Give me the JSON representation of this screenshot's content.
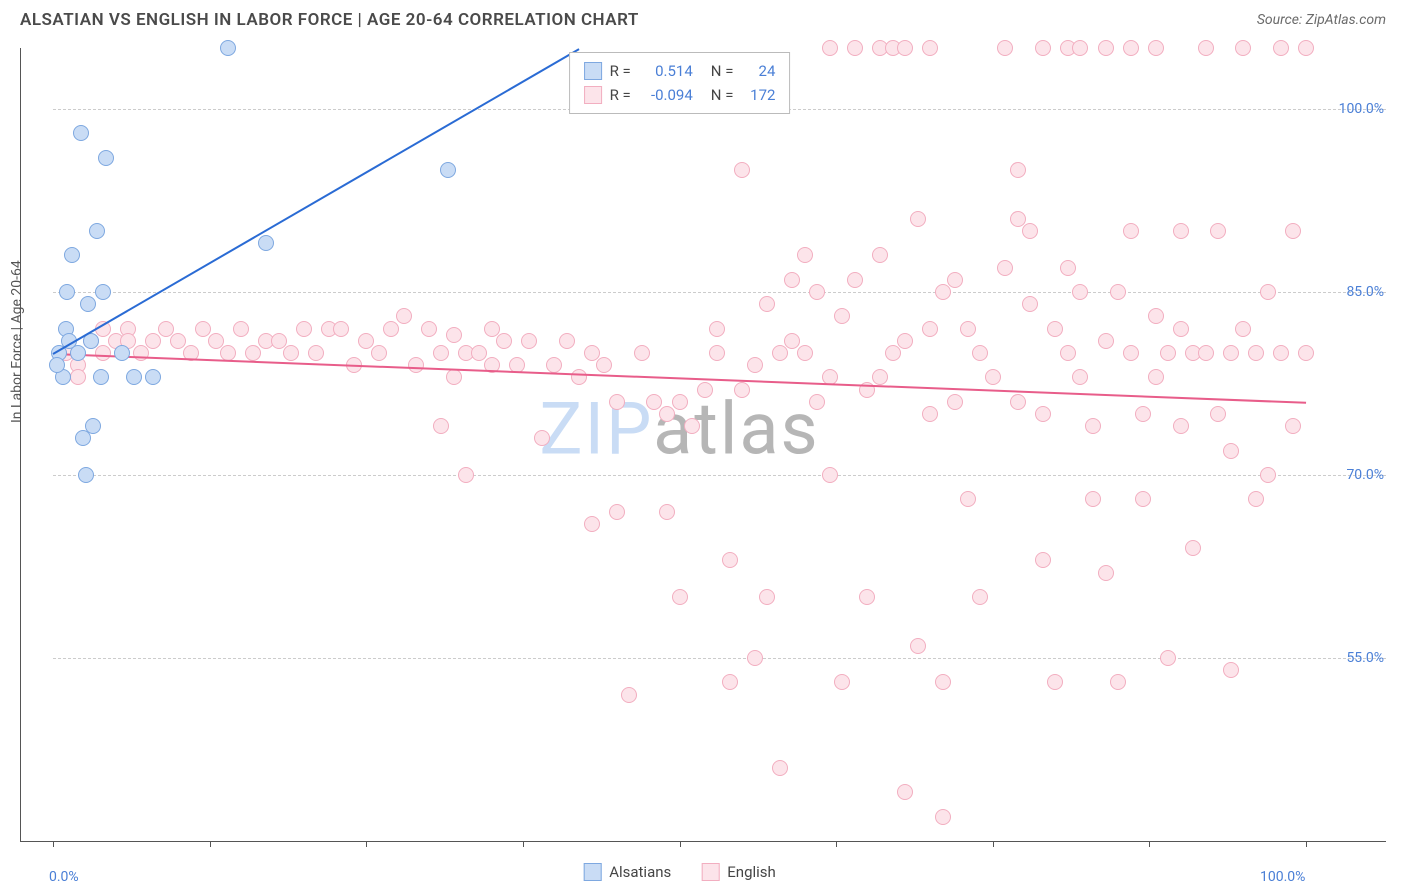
{
  "header": {
    "title": "ALSATIAN VS ENGLISH IN LABOR FORCE | AGE 20-64 CORRELATION CHART",
    "source": "Source: ZipAtlas.com"
  },
  "chart": {
    "type": "scatter",
    "ylabel": "In Labor Force | Age 20-64",
    "xlim": [
      0,
      100
    ],
    "ylim": [
      40,
      105
    ],
    "yticks": [
      {
        "value": 55.0,
        "label": "55.0%"
      },
      {
        "value": 70.0,
        "label": "70.0%"
      },
      {
        "value": 85.0,
        "label": "85.0%"
      },
      {
        "value": 100.0,
        "label": "100.0%"
      }
    ],
    "xticks": [
      {
        "value": 0.0,
        "label": "0.0%"
      },
      {
        "value": 12.5,
        "label": ""
      },
      {
        "value": 25.0,
        "label": ""
      },
      {
        "value": 37.5,
        "label": ""
      },
      {
        "value": 50.0,
        "label": ""
      },
      {
        "value": 62.5,
        "label": ""
      },
      {
        "value": 75.0,
        "label": ""
      },
      {
        "value": 87.5,
        "label": ""
      },
      {
        "value": 100.0,
        "label": "100.0%"
      }
    ],
    "grid_color": "#cccccc",
    "background_color": "#ffffff",
    "axis_color": "#555555",
    "tick_label_color": "#4a7fd6",
    "label_fontsize": 14,
    "point_radius": 8,
    "series": {
      "alsatians": {
        "label": "Alsatians",
        "fill_color": "#c9dcf5",
        "stroke_color": "#7ea8e0",
        "line_color": "#2a6bd4",
        "R": "0.514",
        "N": "24",
        "trend": {
          "x1": 0,
          "y1": 80,
          "x2": 42,
          "y2": 105
        },
        "points": [
          {
            "x": 0.5,
            "y": 80
          },
          {
            "x": 0.8,
            "y": 78
          },
          {
            "x": 1.0,
            "y": 82
          },
          {
            "x": 1.1,
            "y": 85
          },
          {
            "x": 2.0,
            "y": 80
          },
          {
            "x": 2.2,
            "y": 98
          },
          {
            "x": 2.4,
            "y": 73
          },
          {
            "x": 2.6,
            "y": 70
          },
          {
            "x": 3.0,
            "y": 81
          },
          {
            "x": 3.2,
            "y": 74
          },
          {
            "x": 3.5,
            "y": 90
          },
          {
            "x": 3.8,
            "y": 78
          },
          {
            "x": 4.0,
            "y": 85
          },
          {
            "x": 4.2,
            "y": 96
          },
          {
            "x": 5.5,
            "y": 80
          },
          {
            "x": 6.5,
            "y": 78
          },
          {
            "x": 8.0,
            "y": 78
          },
          {
            "x": 14.0,
            "y": 105
          },
          {
            "x": 17.0,
            "y": 89
          },
          {
            "x": 31.5,
            "y": 95
          },
          {
            "x": 1.5,
            "y": 88
          },
          {
            "x": 2.8,
            "y": 84
          },
          {
            "x": 0.3,
            "y": 79
          },
          {
            "x": 1.3,
            "y": 81
          }
        ]
      },
      "english": {
        "label": "English",
        "fill_color": "#fce4ea",
        "stroke_color": "#f2aec0",
        "line_color": "#e85d8a",
        "R": "-0.094",
        "N": "172",
        "trend": {
          "x1": 0,
          "y1": 80,
          "x2": 100,
          "y2": 76
        },
        "points": [
          {
            "x": 1,
            "y": 80
          },
          {
            "x": 2,
            "y": 79
          },
          {
            "x": 3,
            "y": 81
          },
          {
            "x": 4,
            "y": 82
          },
          {
            "x": 5,
            "y": 81
          },
          {
            "x": 6,
            "y": 82
          },
          {
            "x": 7,
            "y": 80
          },
          {
            "x": 8,
            "y": 81
          },
          {
            "x": 9,
            "y": 82
          },
          {
            "x": 10,
            "y": 81
          },
          {
            "x": 11,
            "y": 80
          },
          {
            "x": 12,
            "y": 82
          },
          {
            "x": 13,
            "y": 81
          },
          {
            "x": 14,
            "y": 80
          },
          {
            "x": 15,
            "y": 82
          },
          {
            "x": 16,
            "y": 80
          },
          {
            "x": 17,
            "y": 81
          },
          {
            "x": 18,
            "y": 81
          },
          {
            "x": 19,
            "y": 80
          },
          {
            "x": 20,
            "y": 82
          },
          {
            "x": 21,
            "y": 80
          },
          {
            "x": 22,
            "y": 82
          },
          {
            "x": 23,
            "y": 82
          },
          {
            "x": 24,
            "y": 79
          },
          {
            "x": 25,
            "y": 81
          },
          {
            "x": 26,
            "y": 80
          },
          {
            "x": 27,
            "y": 82
          },
          {
            "x": 28,
            "y": 83
          },
          {
            "x": 29,
            "y": 79
          },
          {
            "x": 30,
            "y": 82
          },
          {
            "x": 31,
            "y": 80
          },
          {
            "x": 32,
            "y": 81.5
          },
          {
            "x": 31,
            "y": 74
          },
          {
            "x": 33,
            "y": 80
          },
          {
            "x": 34,
            "y": 80
          },
          {
            "x": 33,
            "y": 70
          },
          {
            "x": 35,
            "y": 79
          },
          {
            "x": 36,
            "y": 81
          },
          {
            "x": 37,
            "y": 79
          },
          {
            "x": 38,
            "y": 81
          },
          {
            "x": 39,
            "y": 73
          },
          {
            "x": 40,
            "y": 79
          },
          {
            "x": 41,
            "y": 81
          },
          {
            "x": 42,
            "y": 78
          },
          {
            "x": 43,
            "y": 80
          },
          {
            "x": 43,
            "y": 66
          },
          {
            "x": 44,
            "y": 79
          },
          {
            "x": 45,
            "y": 76
          },
          {
            "x": 45,
            "y": 67
          },
          {
            "x": 46,
            "y": 52
          },
          {
            "x": 47,
            "y": 80
          },
          {
            "x": 48,
            "y": 76
          },
          {
            "x": 49,
            "y": 75
          },
          {
            "x": 49,
            "y": 67
          },
          {
            "x": 50,
            "y": 76
          },
          {
            "x": 50,
            "y": 60
          },
          {
            "x": 51,
            "y": 74
          },
          {
            "x": 52,
            "y": 77
          },
          {
            "x": 53,
            "y": 80
          },
          {
            "x": 53,
            "y": 82
          },
          {
            "x": 54,
            "y": 63
          },
          {
            "x": 54,
            "y": 53
          },
          {
            "x": 55,
            "y": 77
          },
          {
            "x": 55,
            "y": 95
          },
          {
            "x": 56,
            "y": 79
          },
          {
            "x": 56,
            "y": 55
          },
          {
            "x": 57,
            "y": 84
          },
          {
            "x": 57,
            "y": 60
          },
          {
            "x": 58,
            "y": 80
          },
          {
            "x": 58,
            "y": 46
          },
          {
            "x": 59,
            "y": 81
          },
          {
            "x": 59,
            "y": 86
          },
          {
            "x": 60,
            "y": 80
          },
          {
            "x": 60,
            "y": 88
          },
          {
            "x": 61,
            "y": 76
          },
          {
            "x": 61,
            "y": 85
          },
          {
            "x": 62,
            "y": 78
          },
          {
            "x": 62,
            "y": 70
          },
          {
            "x": 62,
            "y": 105
          },
          {
            "x": 63,
            "y": 83
          },
          {
            "x": 63,
            "y": 53
          },
          {
            "x": 64,
            "y": 86
          },
          {
            "x": 64,
            "y": 105
          },
          {
            "x": 65,
            "y": 77
          },
          {
            "x": 65,
            "y": 60
          },
          {
            "x": 66,
            "y": 78
          },
          {
            "x": 66,
            "y": 88
          },
          {
            "x": 66,
            "y": 105
          },
          {
            "x": 67,
            "y": 80
          },
          {
            "x": 67,
            "y": 105
          },
          {
            "x": 68,
            "y": 81
          },
          {
            "x": 68,
            "y": 105
          },
          {
            "x": 68,
            "y": 44
          },
          {
            "x": 69,
            "y": 91
          },
          {
            "x": 69,
            "y": 56
          },
          {
            "x": 70,
            "y": 82
          },
          {
            "x": 70,
            "y": 75
          },
          {
            "x": 70,
            "y": 105
          },
          {
            "x": 71,
            "y": 53
          },
          {
            "x": 71,
            "y": 85
          },
          {
            "x": 71,
            "y": 42
          },
          {
            "x": 72,
            "y": 76
          },
          {
            "x": 72,
            "y": 86
          },
          {
            "x": 73,
            "y": 82
          },
          {
            "x": 73,
            "y": 68
          },
          {
            "x": 74,
            "y": 80
          },
          {
            "x": 74,
            "y": 60
          },
          {
            "x": 75,
            "y": 78
          },
          {
            "x": 76,
            "y": 87
          },
          {
            "x": 76,
            "y": 105
          },
          {
            "x": 77,
            "y": 76
          },
          {
            "x": 77,
            "y": 91
          },
          {
            "x": 77,
            "y": 95
          },
          {
            "x": 78,
            "y": 84
          },
          {
            "x": 78,
            "y": 90
          },
          {
            "x": 79,
            "y": 75
          },
          {
            "x": 79,
            "y": 63
          },
          {
            "x": 79,
            "y": 105
          },
          {
            "x": 80,
            "y": 82
          },
          {
            "x": 80,
            "y": 53
          },
          {
            "x": 81,
            "y": 80
          },
          {
            "x": 81,
            "y": 87
          },
          {
            "x": 81,
            "y": 105
          },
          {
            "x": 82,
            "y": 78
          },
          {
            "x": 82,
            "y": 85
          },
          {
            "x": 82,
            "y": 105
          },
          {
            "x": 83,
            "y": 74
          },
          {
            "x": 83,
            "y": 68
          },
          {
            "x": 84,
            "y": 81
          },
          {
            "x": 84,
            "y": 105
          },
          {
            "x": 84,
            "y": 62
          },
          {
            "x": 85,
            "y": 85
          },
          {
            "x": 85,
            "y": 53
          },
          {
            "x": 86,
            "y": 80
          },
          {
            "x": 86,
            "y": 90
          },
          {
            "x": 86,
            "y": 105
          },
          {
            "x": 87,
            "y": 75
          },
          {
            "x": 87,
            "y": 68
          },
          {
            "x": 88,
            "y": 83
          },
          {
            "x": 88,
            "y": 78
          },
          {
            "x": 88,
            "y": 105
          },
          {
            "x": 89,
            "y": 80
          },
          {
            "x": 89,
            "y": 55
          },
          {
            "x": 90,
            "y": 74
          },
          {
            "x": 90,
            "y": 82
          },
          {
            "x": 90,
            "y": 90
          },
          {
            "x": 91,
            "y": 80
          },
          {
            "x": 91,
            "y": 64
          },
          {
            "x": 92,
            "y": 80
          },
          {
            "x": 92,
            "y": 105
          },
          {
            "x": 93,
            "y": 75
          },
          {
            "x": 93,
            "y": 90
          },
          {
            "x": 94,
            "y": 80
          },
          {
            "x": 94,
            "y": 72
          },
          {
            "x": 94,
            "y": 54
          },
          {
            "x": 95,
            "y": 82
          },
          {
            "x": 95,
            "y": 105
          },
          {
            "x": 96,
            "y": 80
          },
          {
            "x": 96,
            "y": 68
          },
          {
            "x": 97,
            "y": 70
          },
          {
            "x": 97,
            "y": 85
          },
          {
            "x": 98,
            "y": 80
          },
          {
            "x": 98,
            "y": 105
          },
          {
            "x": 99,
            "y": 74
          },
          {
            "x": 99,
            "y": 90
          },
          {
            "x": 100,
            "y": 80
          },
          {
            "x": 100,
            "y": 105
          },
          {
            "x": 2,
            "y": 78
          },
          {
            "x": 4,
            "y": 80
          },
          {
            "x": 6,
            "y": 81
          },
          {
            "x": 32,
            "y": 78
          },
          {
            "x": 35,
            "y": 82
          }
        ]
      }
    },
    "legend_top": {
      "R_label": "R =",
      "N_label": "N ="
    },
    "legend_bottom": [
      {
        "key": "alsatians"
      },
      {
        "key": "english"
      }
    ],
    "watermark": {
      "text_light": "ZIP",
      "text_dark": "atlas",
      "light_color": "#c9dcf5",
      "dark_color": "#b6b6b6"
    }
  }
}
